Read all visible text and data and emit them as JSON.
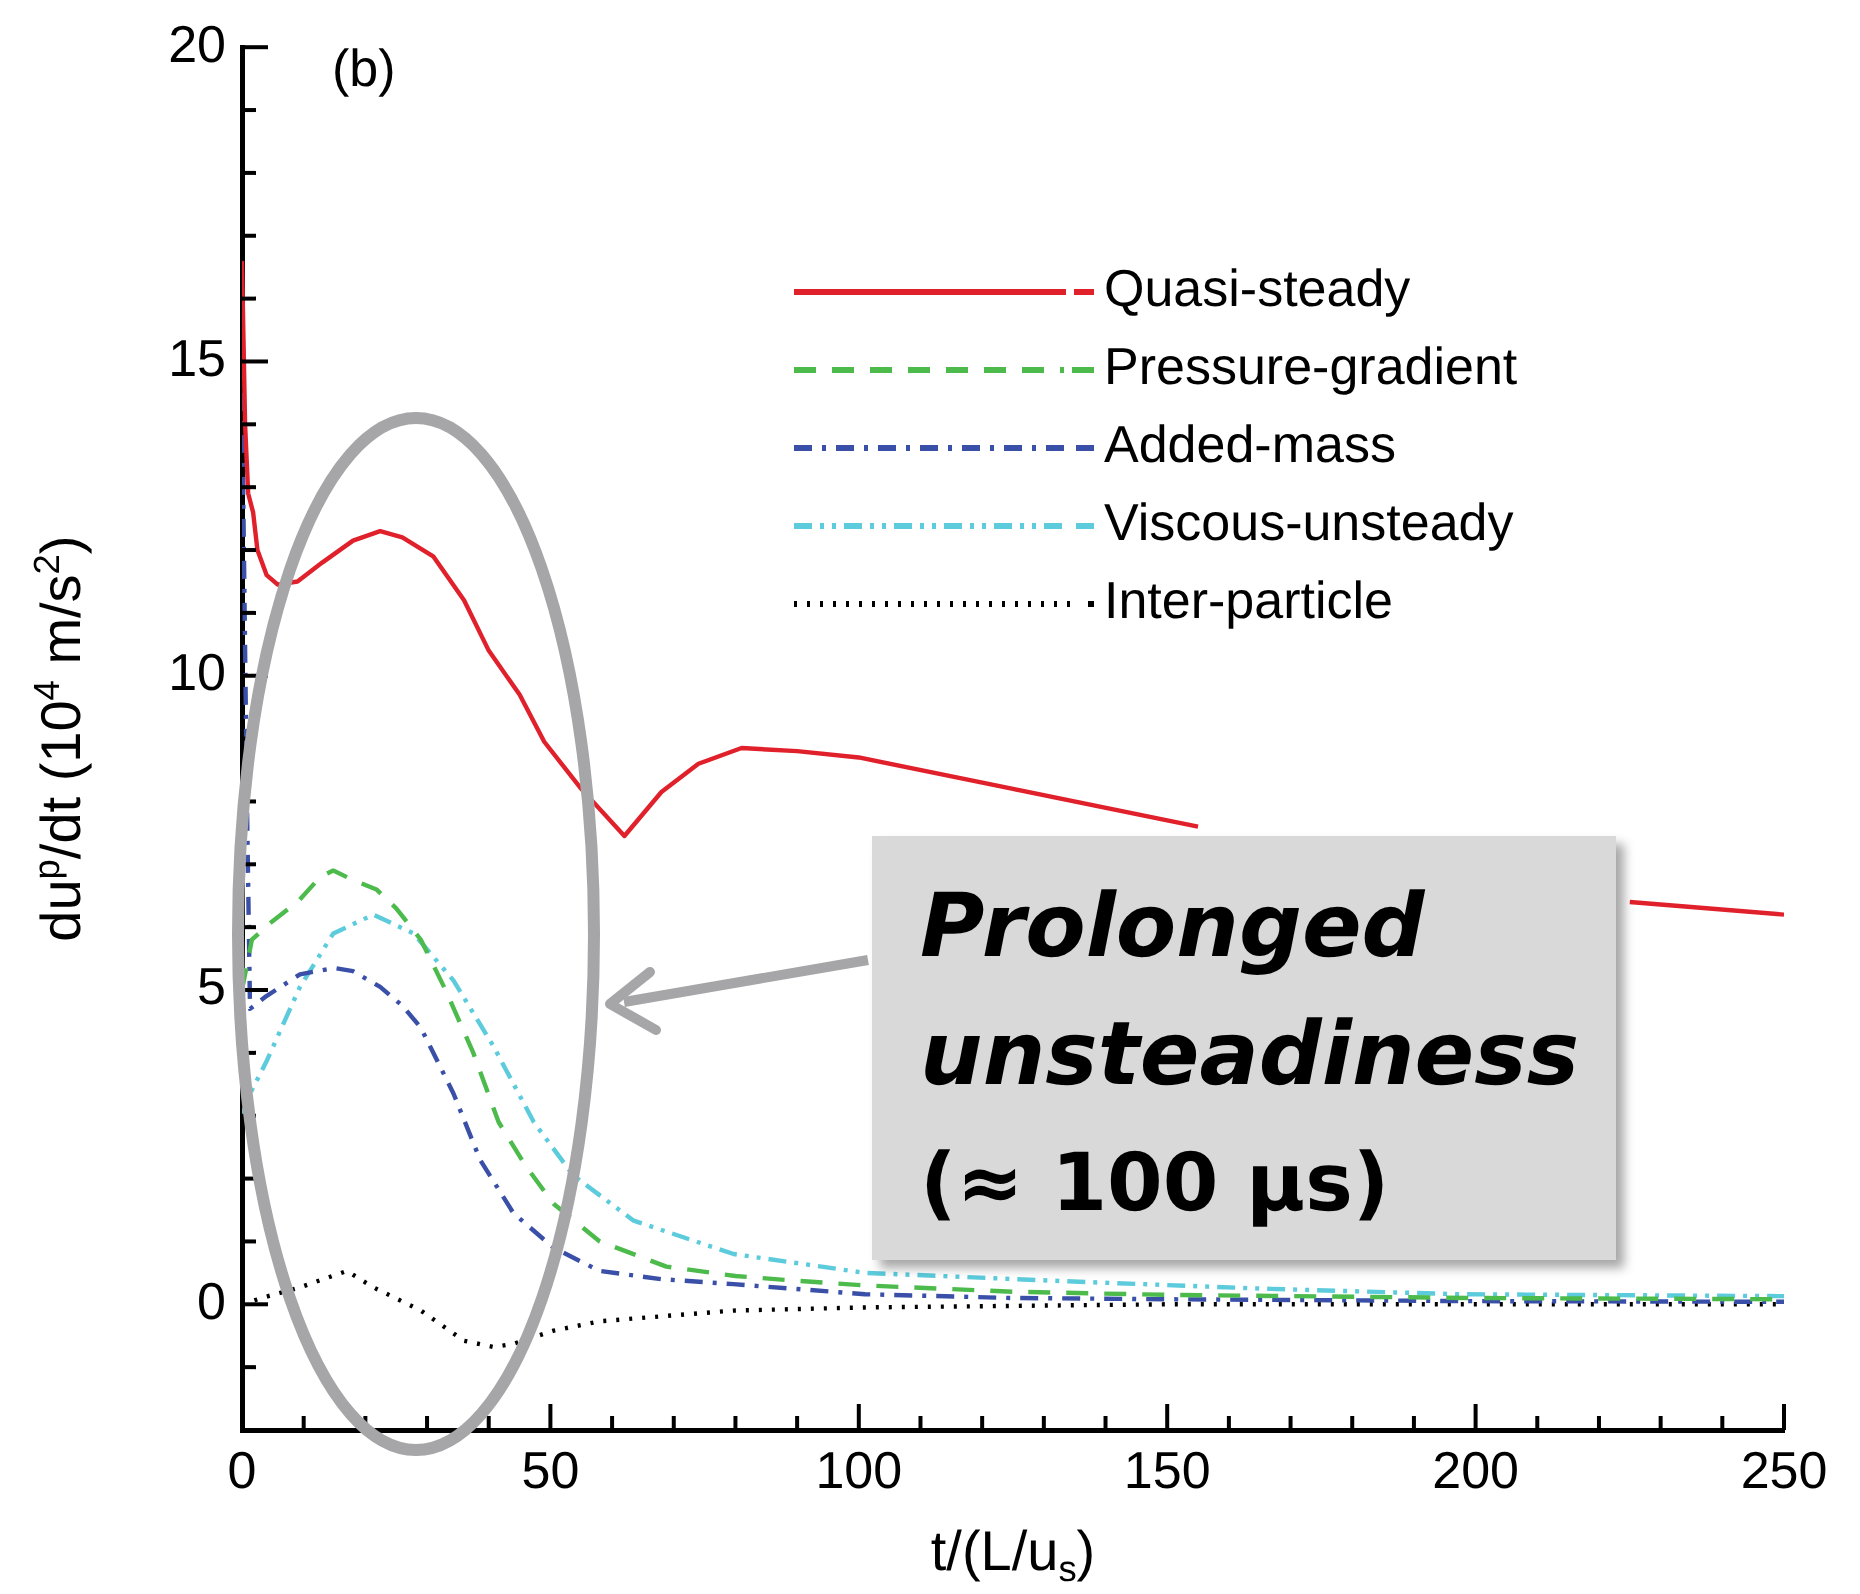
{
  "chart_data": {
    "type": "line",
    "xlabel": "t/(L/u$_{s}$)",
    "ylabel": "du$^{p}$/dt (10$^{4}$ m/s$^{2}$)",
    "annotations": [
      "(b)",
      "Prolonged unsteadiness",
      "(≈ 100 μs)"
    ],
    "xlim": [
      0,
      250
    ],
    "xticks": [
      0,
      {
        "value": 10,
        "label": null
      },
      {
        "value": 20,
        "label": null
      },
      {
        "value": 30,
        "label": null
      },
      {
        "value": 40,
        "label": null
      },
      50,
      {
        "value": 60,
        "label": null
      },
      {
        "value": 70,
        "label": null
      },
      {
        "value": 80,
        "label": null
      },
      {
        "value": 90,
        "label": null
      },
      100,
      {
        "value": 110,
        "label": null
      },
      {
        "value": 120,
        "label": null
      },
      {
        "value": 130,
        "label": null
      },
      {
        "value": 140,
        "label": null
      },
      150,
      {
        "value": 160,
        "label": null
      },
      {
        "value": 170,
        "label": null
      },
      {
        "value": 180,
        "label": null
      },
      {
        "value": 190,
        "label": null
      },
      200,
      {
        "value": 210,
        "label": null
      },
      {
        "value": 220,
        "label": null
      },
      {
        "value": 230,
        "label": null
      },
      {
        "value": 240,
        "label": null
      },
      250
    ],
    "ylim": [
      -2,
      20
    ],
    "yticks": [
      {
        "value": -1,
        "label": null
      },
      0,
      {
        "value": 1,
        "label": null
      },
      {
        "value": 2,
        "label": null
      },
      {
        "value": 3,
        "label": null
      },
      {
        "value": 4,
        "label": null
      },
      5,
      {
        "value": 6,
        "label": null
      },
      {
        "value": 7,
        "label": null
      },
      {
        "value": 8,
        "label": null
      },
      {
        "value": 9,
        "label": null
      },
      10,
      {
        "value": 11,
        "label": null
      },
      {
        "value": 12,
        "label": null
      },
      {
        "value": 13,
        "label": null
      },
      {
        "value": 14,
        "label": null
      },
      15,
      {
        "value": 16,
        "label": null
      },
      {
        "value": 17,
        "label": null
      },
      {
        "value": 18,
        "label": null
      },
      {
        "value": 19,
        "label": null
      },
      20
    ],
    "grid": false,
    "legend": "top right",
    "marker": "none",
    "series": [
      {
        "name": "Quasi-steady",
        "color": "#e0202a",
        "line_style": "solid",
        "x": [
          0,
          0.5,
          1,
          1.8,
          2.5,
          4,
          5.8,
          9,
          13,
          18,
          22.4,
          26,
          31,
          36,
          40,
          45,
          49,
          55,
          62,
          65,
          68,
          74,
          81,
          90,
          100,
          125,
          150,
          155,
          175,
          200,
          225,
          250
        ],
        "values": [
          16.6,
          14,
          12.9,
          12.6,
          12.0,
          11.6,
          11.45,
          11.5,
          11.8,
          12.15,
          12.3,
          12.2,
          11.9,
          11.2,
          10.4,
          9.7,
          8.95,
          8.2,
          7.45,
          7.8,
          8.15,
          8.6,
          8.85,
          8.8,
          8.7,
          8.2,
          7.7,
          7.6,
          null,
          null,
          6.4,
          6.2
        ]
      },
      {
        "name": "Pressure-gradient",
        "color": "#4cbb4c",
        "line_style": "dashed",
        "x": [
          0,
          1.6,
          5,
          9,
          12.7,
          14.8,
          18,
          21.8,
          25,
          29,
          33,
          37.5,
          41.6,
          46,
          50.5,
          58,
          68.8,
          80,
          90.5,
          101,
          125,
          150,
          200,
          250
        ],
        "values": [
          5.0,
          5.8,
          6.1,
          6.4,
          6.8,
          6.9,
          6.75,
          6.6,
          6.3,
          5.8,
          5.0,
          4.0,
          2.9,
          2.2,
          1.6,
          1.0,
          0.6,
          0.45,
          0.37,
          0.3,
          0.2,
          0.15,
          0.1,
          0.08
        ]
      },
      {
        "name": "Added-mass",
        "color": "#3a4fa8",
        "line_style": "dashdot",
        "x": [
          0,
          0.8,
          1.3,
          3.9,
          9.4,
          15,
          18,
          22.4,
          26,
          29,
          34.3,
          38.6,
          44,
          50.5,
          58,
          68,
          79.7,
          101,
          125,
          150,
          200,
          250
        ],
        "values": [
          14.5,
          8,
          4.7,
          4.9,
          5.25,
          5.35,
          5.3,
          5.05,
          4.75,
          4.4,
          3.35,
          2.3,
          1.45,
          0.9,
          0.53,
          0.4,
          0.32,
          0.16,
          0.1,
          0.08,
          0.05,
          0.04
        ]
      },
      {
        "name": "Viscous-unsteady",
        "color": "#5ccbdc",
        "line_style": "dashdotdot",
        "x": [
          0,
          1.3,
          3.9,
          9.4,
          14.8,
          21.3,
          27.8,
          34.3,
          40.8,
          47.3,
          53.7,
          63.5,
          79.7,
          101,
          132.7,
          165,
          197.5,
          250
        ],
        "values": [
          3,
          3.35,
          3.85,
          5.05,
          5.9,
          6.2,
          5.9,
          5.15,
          4.1,
          2.9,
          2.05,
          1.33,
          0.8,
          0.5,
          0.37,
          0.25,
          0.16,
          0.13
        ]
      },
      {
        "name": "Inter-particle",
        "color": "#000000",
        "line_style": "dotted",
        "x": [
          0,
          3.9,
          9.4,
          17,
          21.3,
          29,
          36,
          40.8,
          44,
          50.5,
          58,
          79.7,
          101,
          150,
          200,
          250
        ],
        "values": [
          0,
          0.12,
          0.27,
          0.53,
          0.27,
          -0.1,
          -0.58,
          -0.68,
          -0.63,
          -0.42,
          -0.27,
          -0.1,
          -0.05,
          0,
          0,
          0
        ]
      }
    ]
  }
}
